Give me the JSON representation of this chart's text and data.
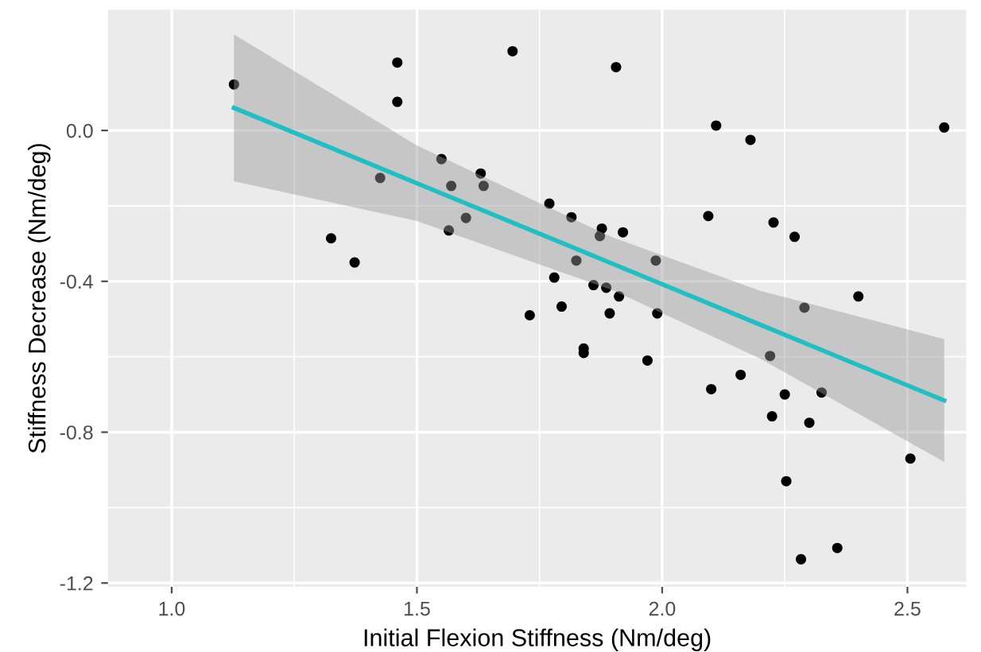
{
  "chart_data": {
    "type": "scatter",
    "xlabel": "Initial Flexion Stiffness (Nm/deg)",
    "ylabel": "Stiffness Decrease (Nm/deg)",
    "xlim": [
      0.87,
      2.62
    ],
    "ylim": [
      -1.21,
      0.32
    ],
    "xticks": [
      {
        "value": 1.0,
        "label": "1.0"
      },
      {
        "value": 1.5,
        "label": "1.5"
      },
      {
        "value": 2.0,
        "label": "2.0"
      },
      {
        "value": 2.5,
        "label": "2.5"
      }
    ],
    "yticks": [
      {
        "value": -1.2,
        "label": "-1.2"
      },
      {
        "value": -0.8,
        "label": "-0.8"
      },
      {
        "value": -0.4,
        "label": "-0.4"
      },
      {
        "value": 0.0,
        "label": "0.0"
      }
    ],
    "grid": true,
    "marker": "circle",
    "series": [
      {
        "color": "#000000",
        "x": [
          1.127,
          1.46,
          1.46,
          1.695,
          1.906,
          2.11,
          2.18,
          2.575,
          1.425,
          1.55,
          1.57,
          1.63,
          1.636,
          1.6,
          1.565,
          1.325,
          1.373,
          1.73,
          1.77,
          1.815,
          1.877,
          1.873,
          1.92,
          1.825,
          1.987,
          1.78,
          1.86,
          1.886,
          1.912,
          1.795,
          1.893,
          1.99,
          2.094,
          2.227,
          2.27,
          2.4,
          2.29,
          1.84,
          1.84,
          1.97,
          2.22,
          2.16,
          2.1,
          2.25,
          2.325,
          2.224,
          2.3,
          2.506,
          2.253,
          2.357,
          2.283
        ],
        "values": [
          0.122,
          0.18,
          0.076,
          0.21,
          0.168,
          0.013,
          -0.025,
          0.008,
          -0.126,
          -0.076,
          -0.147,
          -0.114,
          -0.147,
          -0.232,
          -0.265,
          -0.286,
          -0.35,
          -0.49,
          -0.194,
          -0.23,
          -0.26,
          -0.28,
          -0.27,
          -0.345,
          -0.345,
          -0.39,
          -0.41,
          -0.417,
          -0.44,
          -0.467,
          -0.485,
          -0.485,
          -0.227,
          -0.244,
          -0.282,
          -0.44,
          -0.47,
          -0.578,
          -0.59,
          -0.61,
          -0.598,
          -0.648,
          -0.686,
          -0.7,
          -0.695,
          -0.758,
          -0.775,
          -0.87,
          -0.93,
          -1.107,
          -1.137
        ]
      },
      {
        "type": "line",
        "color": "#1fbfc3",
        "marker": "none",
        "x": [
          1.127,
          1.5,
          1.9,
          2.2,
          2.575
        ],
        "values": [
          0.06,
          -0.14,
          -0.354,
          -0.515,
          -0.716
        ],
        "lower": [
          -0.135,
          -0.24,
          -0.424,
          -0.605,
          -0.879
        ],
        "upper": [
          0.255,
          -0.04,
          -0.284,
          -0.425,
          -0.553
        ]
      }
    ]
  }
}
